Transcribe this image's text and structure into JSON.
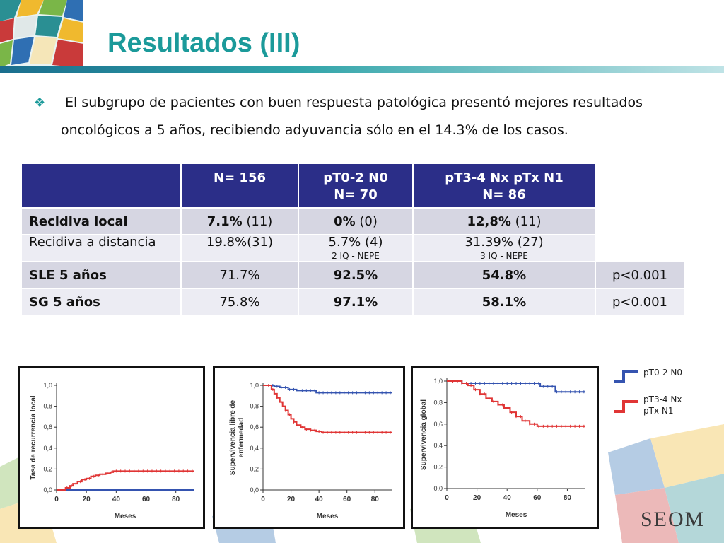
{
  "title": "Resultados (III)",
  "bullet": {
    "line1": "El subgrupo de pacientes con buen respuesta patológica presentó mejores resultados",
    "line2": "oncológicos a 5 años, recibiendo adyuvancia sólo en el 14.3% de los casos."
  },
  "table": {
    "headers": [
      "",
      "N= 156",
      "pT0-2 N0",
      "N= 70",
      "pT3-4 Nx pTx N1",
      "N= 86"
    ],
    "rows": [
      {
        "label": "Recidiva local",
        "n156_b": "7.1%",
        "n156_r": " (11)",
        "g1_b": "0%",
        "g1_r": " (0)",
        "g2_b": "12,8%",
        "g2_r": " (11)"
      },
      {
        "label": "Recidiva a distancia",
        "n156": "19.8%(31)",
        "g1": "5.7% (4)",
        "g1_sub": "2 IQ - NEPE",
        "g2": "31.39% (27)",
        "g2_sub": "3 IQ - NEPE"
      },
      {
        "label": "SLE 5 años",
        "n156": "71.7%",
        "g1": "92.5%",
        "g2": "54.8%",
        "p": "p<0.001"
      },
      {
        "label": "SG 5 años",
        "n156": "75.8%",
        "g1": "97.1%",
        "g2": "58.1%",
        "p": "p<0.001"
      }
    ]
  },
  "charts": [
    {
      "ylabel": "Tasa de recurrencia local",
      "xlabel": "Meses"
    },
    {
      "ylabel1": "Supervivencia libre de",
      "ylabel2": "enfermedad",
      "xlabel": "Meses"
    },
    {
      "ylabel": "Supervivencia global",
      "xlabel": "Meses"
    }
  ],
  "chart_data": [
    {
      "type": "line",
      "ylabel": "Tasa de recurrencia local",
      "xlabel": "Meses",
      "xlim": [
        0,
        92
      ],
      "ylim": [
        0,
        1.0
      ],
      "xticks": [
        "0",
        "20",
        "40",
        "60",
        "80"
      ],
      "yticks": [
        "0,0",
        "0,2",
        "0,4",
        "0,6",
        "0,8",
        "1,0"
      ],
      "series": [
        {
          "name": "pT0-2 N0",
          "color": "#3554b0",
          "x": [
            0,
            92
          ],
          "y": [
            0.0,
            0.0
          ]
        },
        {
          "name": "pT3-4 Nx pTx N1",
          "color": "#e03535",
          "x": [
            0,
            6,
            9,
            11,
            14,
            17,
            20,
            23,
            26,
            29,
            33,
            36,
            38,
            92
          ],
          "y": [
            0,
            0.02,
            0.04,
            0.06,
            0.08,
            0.1,
            0.11,
            0.13,
            0.14,
            0.15,
            0.16,
            0.17,
            0.18,
            0.18
          ]
        }
      ]
    },
    {
      "type": "line",
      "ylabel": "Supervivencia libre de enfermedad",
      "xlabel": "Meses",
      "xlim": [
        0,
        92
      ],
      "ylim": [
        0,
        1.0
      ],
      "xticks": [
        "0",
        "20",
        "40",
        "60",
        "80"
      ],
      "yticks": [
        "0,0",
        "0,2",
        "0,4",
        "0,6",
        "0,8",
        "1,0"
      ],
      "series": [
        {
          "name": "pT0-2 N0",
          "color": "#3554b0",
          "x": [
            0,
            8,
            12,
            18,
            24,
            38,
            92
          ],
          "y": [
            1.0,
            0.99,
            0.98,
            0.96,
            0.95,
            0.93,
            0.93
          ]
        },
        {
          "name": "pT3-4 Nx pTx N1",
          "color": "#e03535",
          "x": [
            0,
            6,
            8,
            10,
            12,
            14,
            16,
            18,
            20,
            22,
            24,
            27,
            30,
            34,
            38,
            42,
            92
          ],
          "y": [
            1.0,
            0.96,
            0.92,
            0.88,
            0.84,
            0.8,
            0.76,
            0.72,
            0.68,
            0.65,
            0.62,
            0.6,
            0.58,
            0.57,
            0.56,
            0.55,
            0.55
          ]
        }
      ]
    },
    {
      "type": "line",
      "ylabel": "Supervivencia global",
      "xlabel": "Meses",
      "xlim": [
        0,
        92
      ],
      "ylim": [
        0,
        1.0
      ],
      "xticks": [
        "0",
        "20",
        "40",
        "60",
        "80"
      ],
      "yticks": [
        "0,0",
        "0,2",
        "0,4",
        "0,6",
        "0,8",
        "1,0"
      ],
      "series": [
        {
          "name": "pT0-2 N0",
          "color": "#3554b0",
          "x": [
            0,
            10,
            30,
            60,
            62,
            72,
            92
          ],
          "y": [
            1.0,
            0.98,
            0.98,
            0.98,
            0.95,
            0.9,
            0.9
          ]
        },
        {
          "name": "pT3-4 Nx pTx N1",
          "color": "#e03535",
          "x": [
            0,
            10,
            14,
            18,
            22,
            26,
            30,
            34,
            38,
            42,
            46,
            50,
            55,
            60,
            92
          ],
          "y": [
            1.0,
            0.98,
            0.96,
            0.92,
            0.88,
            0.84,
            0.81,
            0.78,
            0.75,
            0.71,
            0.67,
            0.63,
            0.6,
            0.58,
            0.58
          ]
        }
      ]
    }
  ],
  "legend": {
    "item1": "pT0-2 N0",
    "item2_l1": "pT3-4 Nx",
    "item2_l2": "pTx N1",
    "color1": "#3554b0",
    "color2": "#e03535"
  },
  "logo": "SEOM"
}
